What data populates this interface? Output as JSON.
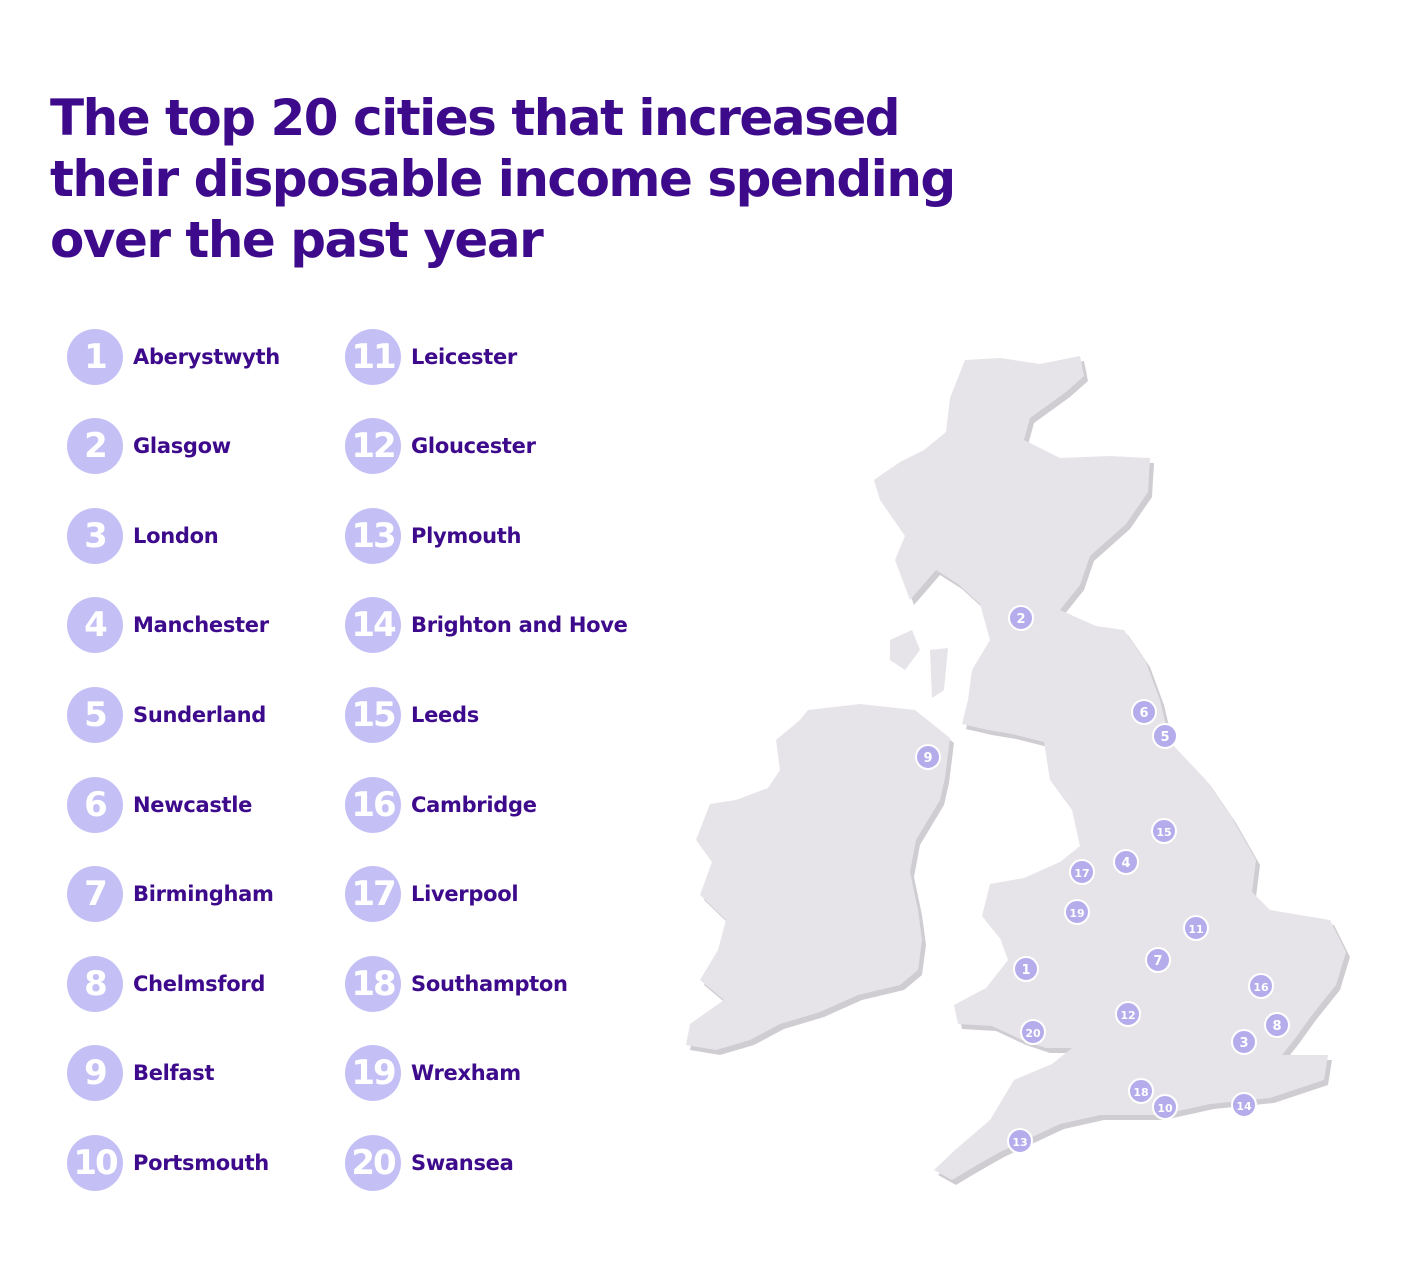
{
  "title_lines": [
    "The top 20 cities that increased",
    "their disposable income spending",
    "over the past year"
  ],
  "cities": [
    {
      "rank": "1",
      "name": "Aberystwyth"
    },
    {
      "rank": "2",
      "name": "Glasgow"
    },
    {
      "rank": "3",
      "name": "London"
    },
    {
      "rank": "4",
      "name": "Manchester"
    },
    {
      "rank": "5",
      "name": "Sunderland"
    },
    {
      "rank": "6",
      "name": "Newcastle"
    },
    {
      "rank": "7",
      "name": "Birmingham"
    },
    {
      "rank": "8",
      "name": "Chelmsford"
    },
    {
      "rank": "9",
      "name": "Belfast"
    },
    {
      "rank": "10",
      "name": "Portsmouth"
    },
    {
      "rank": "11",
      "name": "Leicester"
    },
    {
      "rank": "12",
      "name": "Gloucester"
    },
    {
      "rank": "13",
      "name": "Plymouth"
    },
    {
      "rank": "14",
      "name": "Brighton and Hove"
    },
    {
      "rank": "15",
      "name": "Leeds"
    },
    {
      "rank": "16",
      "name": "Cambridge"
    },
    {
      "rank": "17",
      "name": "Liverpool"
    },
    {
      "rank": "18",
      "name": "Southampton"
    },
    {
      "rank": "19",
      "name": "Wrexham"
    },
    {
      "rank": "20",
      "name": "Swansea"
    }
  ],
  "map_labels": [
    "2",
    "6",
    "5",
    "9",
    "15",
    "4",
    "17",
    "19",
    "11",
    "7",
    "1",
    "16",
    "12",
    "8",
    "20",
    "3",
    "18",
    "10",
    "14",
    "13"
  ],
  "colors": {
    "title": "#3d0a8c",
    "badge": "#c4c0f6",
    "land": "#e6e4e8",
    "land_shadow": "#cfcdd2",
    "map_marker": "#b5acec"
  }
}
